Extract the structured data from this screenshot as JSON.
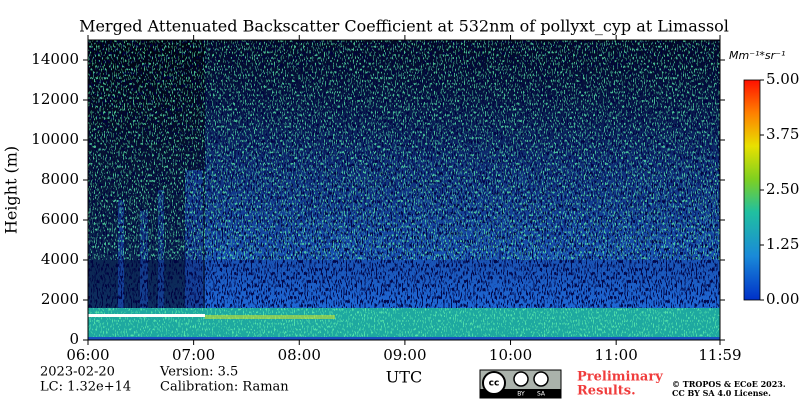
{
  "chart_data": {
    "type": "heatmap",
    "title": "Merged Attenuated Backscatter Coefficient at 532nm of pollyxt_cyp at Limassol",
    "ylabel": "Height (m)",
    "xlabel": "UTC",
    "xlim": [
      6,
      11.983
    ],
    "xticks": [
      {
        "value": 6,
        "label": "06:00"
      },
      {
        "value": 7,
        "label": "07:00"
      },
      {
        "value": 8,
        "label": "08:00"
      },
      {
        "value": 9,
        "label": "09:00"
      },
      {
        "value": 10,
        "label": "10:00"
      },
      {
        "value": 11,
        "label": "11:00"
      },
      {
        "value": 11.983,
        "label": "11:59"
      }
    ],
    "ylim": [
      0,
      15000
    ],
    "yticks": [
      0,
      2000,
      4000,
      6000,
      8000,
      10000,
      12000,
      14000
    ],
    "colorbar": {
      "label": "Mm⁻¹*sr⁻¹",
      "lim": [
        0,
        5
      ],
      "ticks": [
        {
          "value": 0,
          "label": "0.00"
        },
        {
          "value": 1.25,
          "label": "1.25"
        },
        {
          "value": 2.5,
          "label": "2.50"
        },
        {
          "value": 3.75,
          "label": "3.75"
        },
        {
          "value": 5,
          "label": "5.00"
        }
      ]
    }
  },
  "footer": {
    "date": "2023-02-20",
    "lc": "LC: 1.32e+14",
    "version": "Version: 3.5",
    "calibration": "Calibration: Raman",
    "preliminary": [
      "Preliminary",
      "Results."
    ],
    "copyright": [
      "© TROPOS & ECoE 2023.",
      "CC BY SA 4.0 License."
    ],
    "badge": [
      "BY",
      "SA"
    ]
  }
}
